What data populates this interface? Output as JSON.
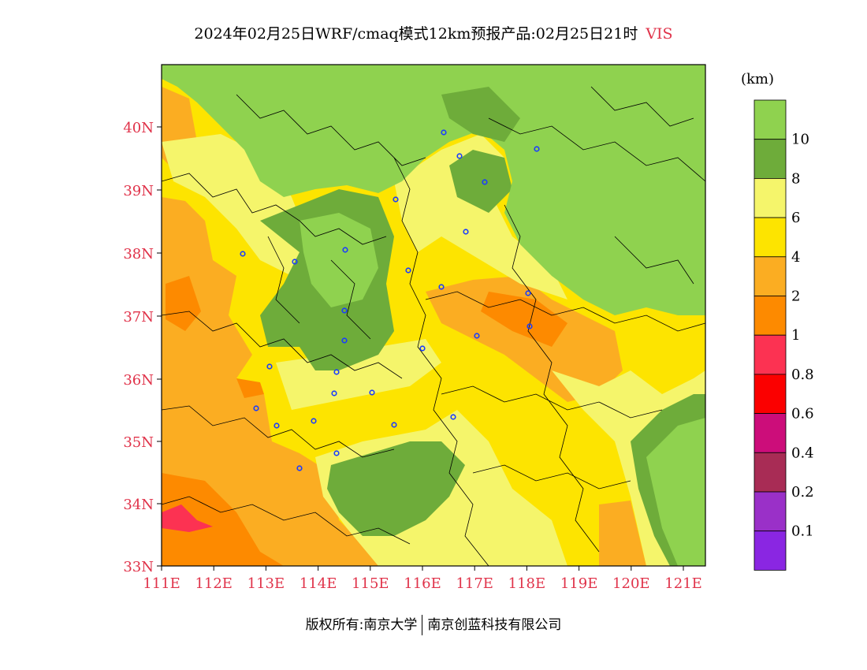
{
  "title": "2024年02月25日WRF/cmaq模式12km预报产品:02月25日21时",
  "variable": "VIS",
  "legend": {
    "unit": "(km)",
    "levels": [
      {
        "label": "10",
        "color": "#8fd24f"
      },
      {
        "label": "8",
        "color": "#6eac3a"
      },
      {
        "label": "6",
        "color": "#f5f56b"
      },
      {
        "label": "4",
        "color": "#fde400"
      },
      {
        "label": "2",
        "color": "#fbad22"
      },
      {
        "label": "1",
        "color": "#fd8a00"
      },
      {
        "label": "0.8",
        "color": "#fc3252"
      },
      {
        "label": "0.6",
        "color": "#fb0000"
      },
      {
        "label": "0.4",
        "color": "#cc0d7a"
      },
      {
        "label": "0.2",
        "color": "#a82c55"
      },
      {
        "label": "0.1",
        "color": "#9a30c8"
      },
      {
        "label": "",
        "color": "#8a26e2"
      }
    ]
  },
  "axes": {
    "lat_labels": [
      "40N",
      "39N",
      "38N",
      "37N",
      "36N",
      "35N",
      "34N",
      "33N"
    ],
    "lon_labels": [
      "111E",
      "112E",
      "113E",
      "114E",
      "115E",
      "116E",
      "117E",
      "118E",
      "119E",
      "120E",
      "121E"
    ],
    "label_color": "#e0334a"
  },
  "footer": {
    "left": "版权所有:南京大学",
    "right": "南京创蓝科技有限公司"
  }
}
